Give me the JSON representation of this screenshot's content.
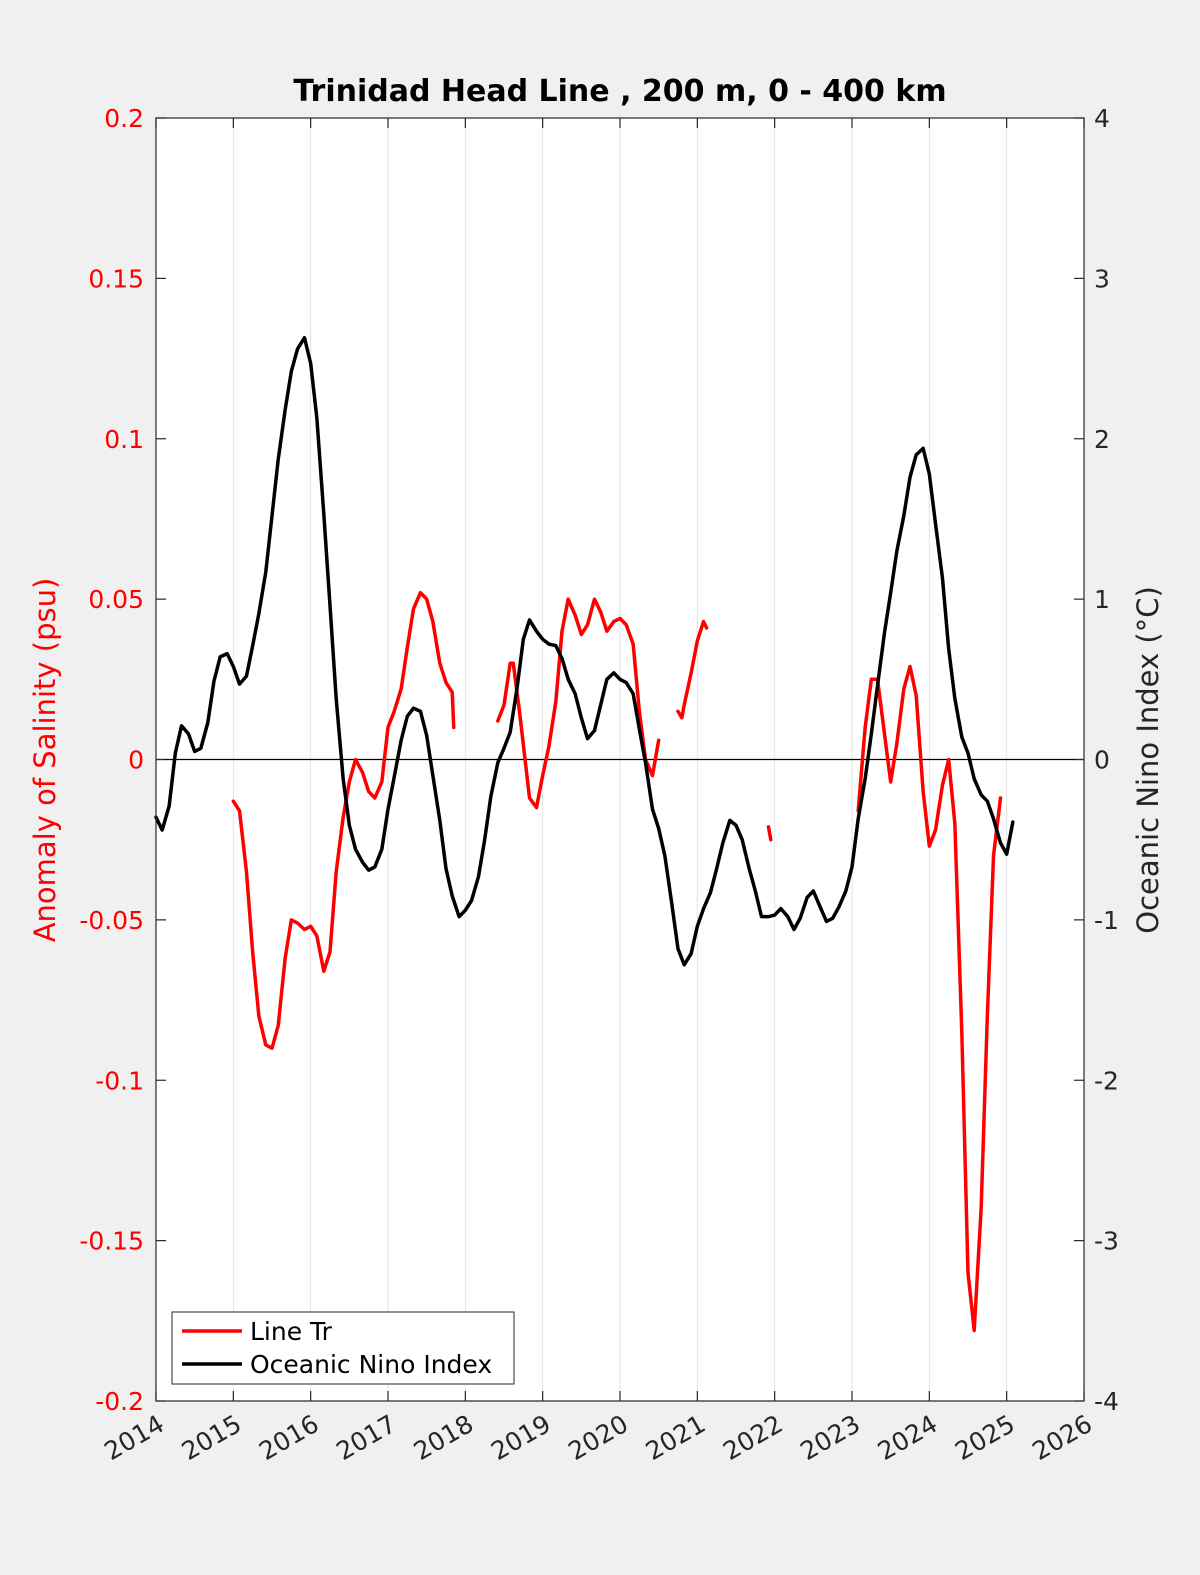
{
  "chart_data": {
    "type": "line",
    "title": "Trinidad Head Line , 200 m, 0 - 400 km",
    "xlabel": "",
    "ylabel_left": "Anomaly of Salinity (psu)",
    "ylabel_right": "Oceanic Nino Index (°C)",
    "xlim": [
      2014,
      2026
    ],
    "ylim_left": [
      -0.2,
      0.2
    ],
    "ylim_right": [
      -4,
      4
    ],
    "x_ticks": [
      "2014",
      "2015",
      "2016",
      "2017",
      "2018",
      "2019",
      "2020",
      "2021",
      "2022",
      "2023",
      "2024",
      "2025",
      "2026"
    ],
    "y_ticks_left": [
      "0.2",
      "0.15",
      "0.1",
      "0.05",
      "0",
      "-0.05",
      "-0.1",
      "-0.15",
      "-0.2"
    ],
    "y_ticks_right": [
      "4",
      "3",
      "2",
      "1",
      "0",
      "-1",
      "-2",
      "-3",
      "-4"
    ],
    "grid": "x-major",
    "legend_position": "bottom-left",
    "colors": {
      "salinity": "#ff0000",
      "oni": "#000000",
      "axes": "#262626"
    },
    "series": [
      {
        "name": "Line Tr",
        "axis": "left",
        "segments": [
          [
            [
              2015.0,
              -0.013
            ],
            [
              2015.08,
              -0.016
            ],
            [
              2015.17,
              -0.035
            ],
            [
              2015.25,
              -0.06
            ],
            [
              2015.33,
              -0.08
            ],
            [
              2015.42,
              -0.089
            ],
            [
              2015.5,
              -0.09
            ],
            [
              2015.58,
              -0.083
            ],
            [
              2015.67,
              -0.062
            ],
            [
              2015.75,
              -0.05
            ],
            [
              2015.83,
              -0.051
            ],
            [
              2015.92,
              -0.053
            ],
            [
              2016.0,
              -0.052
            ],
            [
              2016.08,
              -0.055
            ],
            [
              2016.17,
              -0.066
            ],
            [
              2016.25,
              -0.06
            ],
            [
              2016.33,
              -0.035
            ],
            [
              2016.42,
              -0.018
            ],
            [
              2016.5,
              -0.007
            ],
            [
              2016.58,
              0.0
            ],
            [
              2016.67,
              -0.004
            ],
            [
              2016.75,
              -0.01
            ],
            [
              2016.83,
              -0.012
            ],
            [
              2016.92,
              -0.007
            ],
            [
              2017.0,
              0.01
            ],
            [
              2017.08,
              0.015
            ],
            [
              2017.17,
              0.022
            ],
            [
              2017.25,
              0.035
            ],
            [
              2017.33,
              0.047
            ],
            [
              2017.42,
              0.052
            ],
            [
              2017.5,
              0.05
            ],
            [
              2017.58,
              0.043
            ],
            [
              2017.67,
              0.03
            ],
            [
              2017.75,
              0.024
            ],
            [
              2017.83,
              0.021
            ],
            [
              2017.85,
              0.01
            ]
          ],
          [
            [
              2018.42,
              0.012
            ],
            [
              2018.5,
              0.017
            ],
            [
              2018.58,
              0.03
            ],
            [
              2018.62,
              0.03
            ],
            [
              2018.7,
              0.015
            ],
            [
              2018.83,
              -0.012
            ],
            [
              2018.92,
              -0.015
            ],
            [
              2019.0,
              -0.005
            ],
            [
              2019.08,
              0.004
            ],
            [
              2019.17,
              0.018
            ],
            [
              2019.25,
              0.04
            ],
            [
              2019.33,
              0.05
            ],
            [
              2019.42,
              0.045
            ],
            [
              2019.5,
              0.039
            ],
            [
              2019.58,
              0.042
            ],
            [
              2019.67,
              0.05
            ],
            [
              2019.75,
              0.046
            ],
            [
              2019.83,
              0.04
            ],
            [
              2019.92,
              0.043
            ],
            [
              2020.0,
              0.044
            ],
            [
              2020.08,
              0.042
            ],
            [
              2020.17,
              0.036
            ],
            [
              2020.25,
              0.015
            ],
            [
              2020.33,
              0.0
            ],
            [
              2020.42,
              -0.005
            ],
            [
              2020.5,
              0.006
            ]
          ],
          [
            [
              2020.75,
              0.015
            ],
            [
              2020.8,
              0.013
            ],
            [
              2020.83,
              0.017
            ],
            [
              2020.92,
              0.027
            ],
            [
              2021.0,
              0.037
            ],
            [
              2021.08,
              0.043
            ],
            [
              2021.12,
              0.041
            ]
          ],
          [
            [
              2021.92,
              -0.021
            ],
            [
              2021.95,
              -0.025
            ]
          ],
          [
            [
              2023.08,
              -0.016
            ],
            [
              2023.17,
              0.01
            ],
            [
              2023.25,
              0.025
            ],
            [
              2023.33,
              0.025
            ],
            [
              2023.42,
              0.008
            ],
            [
              2023.5,
              -0.007
            ],
            [
              2023.58,
              0.005
            ],
            [
              2023.67,
              0.022
            ],
            [
              2023.75,
              0.029
            ],
            [
              2023.83,
              0.02
            ],
            [
              2023.92,
              -0.01
            ],
            [
              2024.0,
              -0.027
            ],
            [
              2024.08,
              -0.022
            ],
            [
              2024.17,
              -0.008
            ],
            [
              2024.25,
              0.0
            ],
            [
              2024.33,
              -0.02
            ],
            [
              2024.42,
              -0.085
            ],
            [
              2024.5,
              -0.16
            ],
            [
              2024.58,
              -0.178
            ],
            [
              2024.67,
              -0.14
            ],
            [
              2024.75,
              -0.08
            ],
            [
              2024.83,
              -0.03
            ],
            [
              2024.92,
              -0.012
            ]
          ]
        ]
      },
      {
        "name": "Oceanic Nino Index",
        "axis": "right",
        "segments": [
          [
            [
              2014.0,
              -0.36
            ],
            [
              2014.08,
              -0.44
            ],
            [
              2014.17,
              -0.29
            ],
            [
              2014.25,
              0.04
            ],
            [
              2014.33,
              0.21
            ],
            [
              2014.42,
              0.16
            ],
            [
              2014.5,
              0.05
            ],
            [
              2014.58,
              0.07
            ],
            [
              2014.67,
              0.23
            ],
            [
              2014.75,
              0.49
            ],
            [
              2014.83,
              0.64
            ],
            [
              2014.92,
              0.66
            ],
            [
              2015.0,
              0.58
            ],
            [
              2015.08,
              0.47
            ],
            [
              2015.17,
              0.52
            ],
            [
              2015.25,
              0.71
            ],
            [
              2015.33,
              0.91
            ],
            [
              2015.42,
              1.17
            ],
            [
              2015.5,
              1.52
            ],
            [
              2015.58,
              1.87
            ],
            [
              2015.67,
              2.18
            ],
            [
              2015.75,
              2.42
            ],
            [
              2015.83,
              2.56
            ],
            [
              2015.92,
              2.63
            ],
            [
              2016.0,
              2.47
            ],
            [
              2016.08,
              2.13
            ],
            [
              2016.17,
              1.53
            ],
            [
              2016.25,
              0.96
            ],
            [
              2016.33,
              0.38
            ],
            [
              2016.42,
              -0.12
            ],
            [
              2016.5,
              -0.41
            ],
            [
              2016.58,
              -0.56
            ],
            [
              2016.67,
              -0.64
            ],
            [
              2016.75,
              -0.69
            ],
            [
              2016.83,
              -0.67
            ],
            [
              2016.92,
              -0.56
            ],
            [
              2017.0,
              -0.31
            ],
            [
              2017.08,
              -0.11
            ],
            [
              2017.17,
              0.12
            ],
            [
              2017.25,
              0.27
            ],
            [
              2017.33,
              0.32
            ],
            [
              2017.42,
              0.3
            ],
            [
              2017.5,
              0.15
            ],
            [
              2017.58,
              -0.1
            ],
            [
              2017.67,
              -0.38
            ],
            [
              2017.75,
              -0.68
            ],
            [
              2017.83,
              -0.85
            ],
            [
              2017.92,
              -0.98
            ],
            [
              2018.0,
              -0.94
            ],
            [
              2018.08,
              -0.88
            ],
            [
              2018.17,
              -0.73
            ],
            [
              2018.25,
              -0.5
            ],
            [
              2018.33,
              -0.23
            ],
            [
              2018.42,
              -0.02
            ],
            [
              2018.5,
              0.07
            ],
            [
              2018.58,
              0.17
            ],
            [
              2018.67,
              0.45
            ],
            [
              2018.75,
              0.75
            ],
            [
              2018.83,
              0.87
            ],
            [
              2018.92,
              0.8
            ],
            [
              2019.0,
              0.75
            ],
            [
              2019.08,
              0.72
            ],
            [
              2019.17,
              0.71
            ],
            [
              2019.25,
              0.63
            ],
            [
              2019.33,
              0.5
            ],
            [
              2019.42,
              0.41
            ],
            [
              2019.5,
              0.26
            ],
            [
              2019.58,
              0.13
            ],
            [
              2019.67,
              0.18
            ],
            [
              2019.75,
              0.34
            ],
            [
              2019.83,
              0.5
            ],
            [
              2019.92,
              0.54
            ],
            [
              2020.0,
              0.5
            ],
            [
              2020.08,
              0.48
            ],
            [
              2020.17,
              0.41
            ],
            [
              2020.25,
              0.19
            ],
            [
              2020.33,
              -0.02
            ],
            [
              2020.42,
              -0.31
            ],
            [
              2020.5,
              -0.43
            ],
            [
              2020.58,
              -0.6
            ],
            [
              2020.67,
              -0.9
            ],
            [
              2020.75,
              -1.18
            ],
            [
              2020.83,
              -1.28
            ],
            [
              2020.92,
              -1.21
            ],
            [
              2021.0,
              -1.04
            ],
            [
              2021.08,
              -0.93
            ],
            [
              2021.17,
              -0.83
            ],
            [
              2021.25,
              -0.68
            ],
            [
              2021.33,
              -0.52
            ],
            [
              2021.42,
              -0.38
            ],
            [
              2021.5,
              -0.41
            ],
            [
              2021.58,
              -0.5
            ],
            [
              2021.67,
              -0.68
            ],
            [
              2021.75,
              -0.82
            ],
            [
              2021.83,
              -0.98
            ],
            [
              2021.92,
              -0.98
            ],
            [
              2022.0,
              -0.97
            ],
            [
              2022.08,
              -0.93
            ],
            [
              2022.17,
              -0.98
            ],
            [
              2022.25,
              -1.06
            ],
            [
              2022.33,
              -0.99
            ],
            [
              2022.42,
              -0.86
            ],
            [
              2022.5,
              -0.82
            ],
            [
              2022.58,
              -0.91
            ],
            [
              2022.67,
              -1.01
            ],
            [
              2022.75,
              -0.99
            ],
            [
              2022.83,
              -0.92
            ],
            [
              2022.92,
              -0.82
            ],
            [
              2023.0,
              -0.67
            ],
            [
              2023.08,
              -0.37
            ],
            [
              2023.17,
              -0.12
            ],
            [
              2023.25,
              0.16
            ],
            [
              2023.33,
              0.46
            ],
            [
              2023.42,
              0.79
            ],
            [
              2023.5,
              1.04
            ],
            [
              2023.58,
              1.3
            ],
            [
              2023.67,
              1.52
            ],
            [
              2023.75,
              1.76
            ],
            [
              2023.83,
              1.9
            ],
            [
              2023.92,
              1.94
            ],
            [
              2024.0,
              1.78
            ],
            [
              2024.08,
              1.47
            ],
            [
              2024.17,
              1.13
            ],
            [
              2024.25,
              0.69
            ],
            [
              2024.33,
              0.38
            ],
            [
              2024.42,
              0.14
            ],
            [
              2024.5,
              0.04
            ],
            [
              2024.58,
              -0.12
            ],
            [
              2024.67,
              -0.22
            ],
            [
              2024.75,
              -0.26
            ],
            [
              2024.83,
              -0.37
            ],
            [
              2024.92,
              -0.52
            ],
            [
              2025.0,
              -0.59
            ],
            [
              2025.08,
              -0.39
            ]
          ]
        ]
      }
    ]
  }
}
